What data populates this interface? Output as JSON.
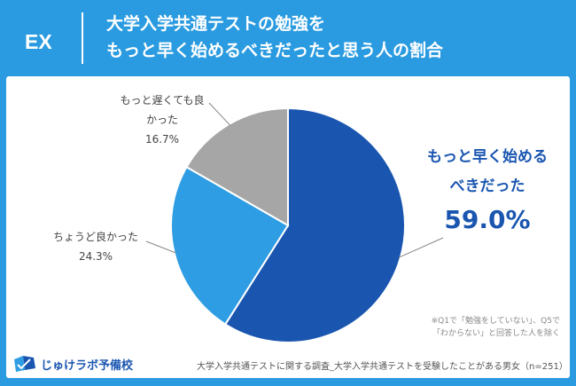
{
  "header": {
    "tag": "EX",
    "title_line1": "大学入学共通テストの勉強を",
    "title_line2": "もっと早く始めるべきだったと思う人の割合"
  },
  "labels": {
    "slice1_line1": "もっと早く始める",
    "slice1_line2": "べきだった",
    "slice1_value": "59.0%",
    "slice2_line1": "ちょうど良かった",
    "slice2_value": "24.3%",
    "slice3_line1": "もっと遅くても良",
    "slice3_line2": "かった",
    "slice3_value": "16.7%"
  },
  "note": {
    "line1": "※Q1で「勉強をしていない」、Q5で",
    "line2": "「わからない」と回答した人を除く"
  },
  "footer": "大学入学共通テストに関する調査_大学入学共通テストを受験したことがある男女（n=251）",
  "logo": {
    "text": "じゅけラボ予備校",
    "icon": "book-logo-icon"
  },
  "colors": {
    "background": "#2a9be0",
    "slice1": "#1a56b0",
    "slice2": "#2e9de3",
    "slice3": "#a6a6a6"
  },
  "chart_data": {
    "type": "pie",
    "title": "大学入学共通テストの勉強をもっと早く始めるべきだったと思う人の割合",
    "categories": [
      "もっと早く始めるべきだった",
      "ちょうど良かった",
      "もっと遅くても良かった"
    ],
    "values": [
      59.0,
      24.3,
      16.7
    ],
    "unit": "%",
    "start": "12 o'clock",
    "direction": "clockwise"
  }
}
